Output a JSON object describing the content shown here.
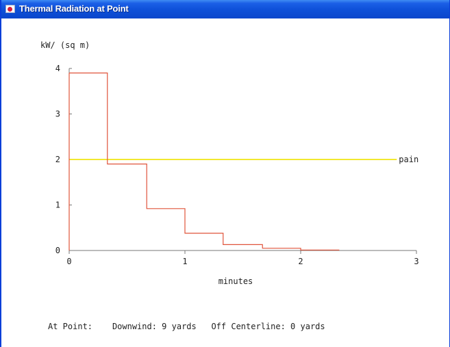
{
  "window": {
    "title": "Thermal Radiation at Point",
    "icon": "app-window-icon"
  },
  "chart_data": {
    "type": "line",
    "ylabel": "kW/ (sq m)",
    "xlabel": "minutes",
    "xlim": [
      0,
      3
    ],
    "ylim": [
      0,
      4
    ],
    "x_ticks": [
      "0",
      "1",
      "2",
      "3"
    ],
    "y_ticks": [
      "0",
      "1",
      "2",
      "3",
      "4"
    ],
    "grid": false,
    "series": [
      {
        "color": "#e0533a",
        "step": true,
        "x": [
          0,
          0.33,
          0.67,
          1.0,
          1.33,
          1.67,
          2.0,
          2.33
        ],
        "y": [
          3.9,
          1.9,
          0.92,
          0.38,
          0.13,
          0.05,
          0.01,
          0.0
        ]
      }
    ],
    "reference_lines": [
      {
        "label": "pain",
        "y": 2,
        "x_end": 2.83,
        "color": "#f2e830"
      }
    ]
  },
  "status": {
    "label": "At Point:",
    "downwind": "Downwind: 9 yards",
    "off_centerline": "Off Centerline: 0 yards"
  }
}
